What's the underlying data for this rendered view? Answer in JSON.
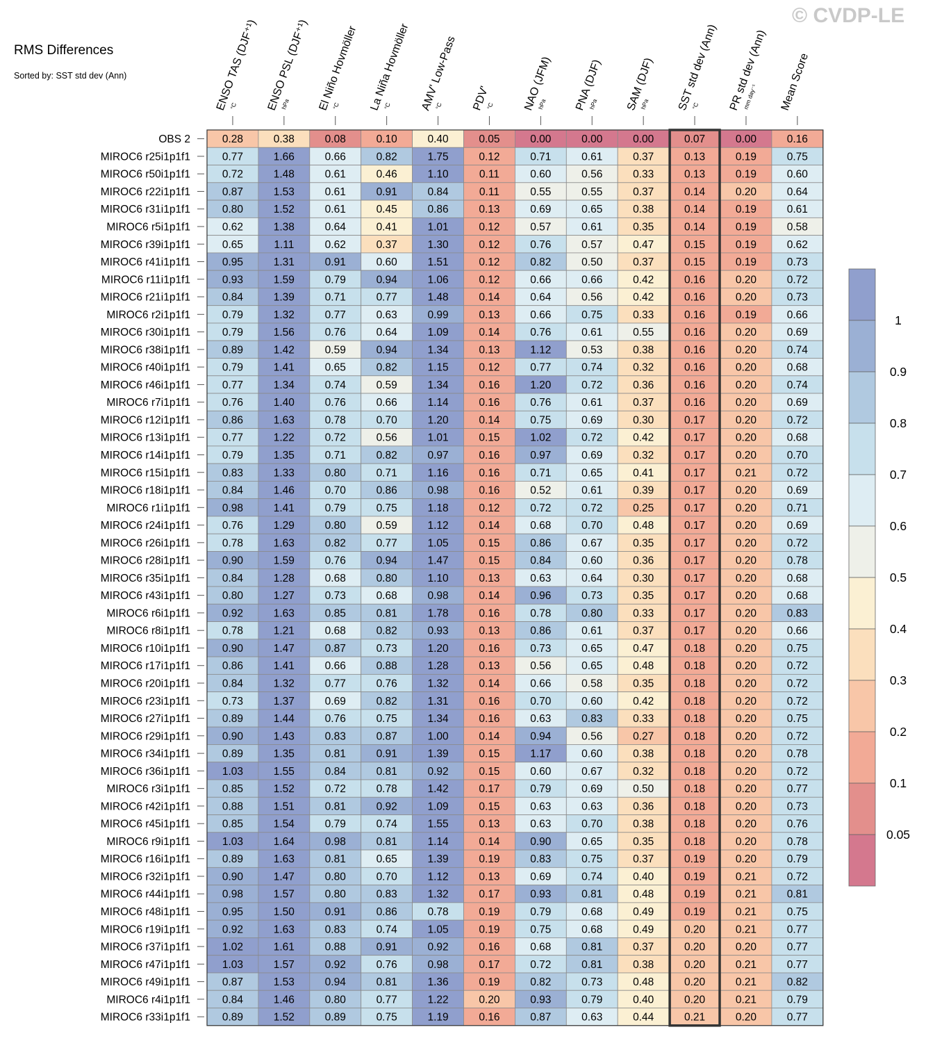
{
  "title": "RMS Differences",
  "subtitle": "Sorted by: SST std dev (Ann)",
  "watermark": "© CVDP-LE",
  "chart_data": {
    "type": "heatmap",
    "columns": [
      {
        "name": "ENSO TAS (DJF⁺¹)",
        "unit": "°C"
      },
      {
        "name": "ENSO PSL (DJF⁺¹)",
        "unit": "hPa"
      },
      {
        "name": "El Niño Hovmöller",
        "unit": "°C"
      },
      {
        "name": "La Niña Hovmöller",
        "unit": "°C"
      },
      {
        "name": "AMV' Low-Pass",
        "unit": "°C"
      },
      {
        "name": "PDV'",
        "unit": "°C"
      },
      {
        "name": "NAO (JFM)",
        "unit": "hPa"
      },
      {
        "name": "PNA (DJF)",
        "unit": "hPa"
      },
      {
        "name": "SAM (DJF)",
        "unit": "hPa"
      },
      {
        "name": "SST std dev (Ann)",
        "unit": "°C"
      },
      {
        "name": "PR std dev (Ann)",
        "unit": "mm day⁻¹"
      },
      {
        "name": "Mean Score",
        "unit": ""
      }
    ],
    "highlight_column": "SST std dev (Ann)",
    "rows": [
      {
        "label": "OBS 2",
        "values": [
          0.28,
          0.38,
          0.08,
          0.1,
          0.4,
          0.05,
          0.0,
          0.0,
          0.0,
          0.07,
          0.0,
          0.16
        ]
      },
      {
        "label": "MIROC6 r25i1p1f1",
        "values": [
          0.77,
          1.66,
          0.66,
          0.82,
          1.75,
          0.12,
          0.71,
          0.61,
          0.37,
          0.13,
          0.19,
          0.75
        ]
      },
      {
        "label": "MIROC6 r50i1p1f1",
        "values": [
          0.72,
          1.48,
          0.61,
          0.46,
          1.1,
          0.11,
          0.6,
          0.56,
          0.33,
          0.13,
          0.19,
          0.6
        ]
      },
      {
        "label": "MIROC6 r22i1p1f1",
        "values": [
          0.87,
          1.53,
          0.61,
          0.91,
          0.84,
          0.11,
          0.55,
          0.55,
          0.37,
          0.14,
          0.2,
          0.64
        ]
      },
      {
        "label": "MIROC6 r31i1p1f1",
        "values": [
          0.8,
          1.52,
          0.61,
          0.45,
          0.86,
          0.13,
          0.69,
          0.65,
          0.38,
          0.14,
          0.19,
          0.61
        ]
      },
      {
        "label": "MIROC6 r5i1p1f1",
        "values": [
          0.62,
          1.38,
          0.64,
          0.41,
          1.01,
          0.12,
          0.57,
          0.61,
          0.35,
          0.14,
          0.19,
          0.58
        ]
      },
      {
        "label": "MIROC6 r39i1p1f1",
        "values": [
          0.65,
          1.11,
          0.62,
          0.37,
          1.3,
          0.12,
          0.76,
          0.57,
          0.47,
          0.15,
          0.19,
          0.62
        ]
      },
      {
        "label": "MIROC6 r41i1p1f1",
        "values": [
          0.95,
          1.31,
          0.91,
          0.6,
          1.51,
          0.12,
          0.82,
          0.5,
          0.37,
          0.15,
          0.19,
          0.73
        ]
      },
      {
        "label": "MIROC6 r11i1p1f1",
        "values": [
          0.93,
          1.59,
          0.79,
          0.94,
          1.06,
          0.12,
          0.66,
          0.66,
          0.42,
          0.16,
          0.2,
          0.72
        ]
      },
      {
        "label": "MIROC6 r21i1p1f1",
        "values": [
          0.84,
          1.39,
          0.71,
          0.77,
          1.48,
          0.14,
          0.64,
          0.56,
          0.42,
          0.16,
          0.2,
          0.73
        ]
      },
      {
        "label": "MIROC6 r2i1p1f1",
        "values": [
          0.79,
          1.32,
          0.77,
          0.63,
          0.99,
          0.13,
          0.66,
          0.75,
          0.33,
          0.16,
          0.19,
          0.66
        ]
      },
      {
        "label": "MIROC6 r30i1p1f1",
        "values": [
          0.79,
          1.56,
          0.76,
          0.64,
          1.09,
          0.14,
          0.76,
          0.61,
          0.55,
          0.16,
          0.2,
          0.69
        ]
      },
      {
        "label": "MIROC6 r38i1p1f1",
        "values": [
          0.89,
          1.42,
          0.59,
          0.94,
          1.34,
          0.13,
          1.12,
          0.53,
          0.38,
          0.16,
          0.2,
          0.74
        ]
      },
      {
        "label": "MIROC6 r40i1p1f1",
        "values": [
          0.79,
          1.41,
          0.65,
          0.82,
          1.15,
          0.12,
          0.77,
          0.74,
          0.32,
          0.16,
          0.2,
          0.68
        ]
      },
      {
        "label": "MIROC6 r46i1p1f1",
        "values": [
          0.77,
          1.34,
          0.74,
          0.59,
          1.34,
          0.16,
          1.2,
          0.72,
          0.36,
          0.16,
          0.2,
          0.74
        ]
      },
      {
        "label": "MIROC6 r7i1p1f1",
        "values": [
          0.76,
          1.4,
          0.76,
          0.66,
          1.14,
          0.16,
          0.76,
          0.61,
          0.37,
          0.16,
          0.2,
          0.69
        ]
      },
      {
        "label": "MIROC6 r12i1p1f1",
        "values": [
          0.86,
          1.63,
          0.78,
          0.7,
          1.2,
          0.14,
          0.75,
          0.69,
          0.3,
          0.17,
          0.2,
          0.72
        ]
      },
      {
        "label": "MIROC6 r13i1p1f1",
        "values": [
          0.77,
          1.22,
          0.72,
          0.56,
          1.01,
          0.15,
          1.02,
          0.72,
          0.42,
          0.17,
          0.2,
          0.68
        ]
      },
      {
        "label": "MIROC6 r14i1p1f1",
        "values": [
          0.79,
          1.35,
          0.71,
          0.82,
          0.97,
          0.16,
          0.97,
          0.69,
          0.32,
          0.17,
          0.2,
          0.7
        ]
      },
      {
        "label": "MIROC6 r15i1p1f1",
        "values": [
          0.83,
          1.33,
          0.8,
          0.71,
          1.16,
          0.16,
          0.71,
          0.65,
          0.41,
          0.17,
          0.21,
          0.72
        ]
      },
      {
        "label": "MIROC6 r18i1p1f1",
        "values": [
          0.84,
          1.46,
          0.7,
          0.86,
          0.98,
          0.16,
          0.52,
          0.61,
          0.39,
          0.17,
          0.2,
          0.69
        ]
      },
      {
        "label": "MIROC6 r1i1p1f1",
        "values": [
          0.98,
          1.41,
          0.79,
          0.75,
          1.18,
          0.12,
          0.72,
          0.72,
          0.25,
          0.17,
          0.2,
          0.71
        ]
      },
      {
        "label": "MIROC6 r24i1p1f1",
        "values": [
          0.76,
          1.29,
          0.8,
          0.59,
          1.12,
          0.14,
          0.68,
          0.7,
          0.48,
          0.17,
          0.2,
          0.69
        ]
      },
      {
        "label": "MIROC6 r26i1p1f1",
        "values": [
          0.78,
          1.63,
          0.82,
          0.77,
          1.05,
          0.15,
          0.86,
          0.67,
          0.35,
          0.17,
          0.2,
          0.72
        ]
      },
      {
        "label": "MIROC6 r28i1p1f1",
        "values": [
          0.9,
          1.59,
          0.76,
          0.94,
          1.47,
          0.15,
          0.84,
          0.6,
          0.36,
          0.17,
          0.2,
          0.78
        ]
      },
      {
        "label": "MIROC6 r35i1p1f1",
        "values": [
          0.84,
          1.28,
          0.68,
          0.8,
          1.1,
          0.13,
          0.63,
          0.64,
          0.3,
          0.17,
          0.2,
          0.68
        ]
      },
      {
        "label": "MIROC6 r43i1p1f1",
        "values": [
          0.8,
          1.27,
          0.73,
          0.68,
          0.98,
          0.14,
          0.96,
          0.73,
          0.35,
          0.17,
          0.2,
          0.68
        ]
      },
      {
        "label": "MIROC6 r6i1p1f1",
        "values": [
          0.92,
          1.63,
          0.85,
          0.81,
          1.78,
          0.16,
          0.78,
          0.8,
          0.33,
          0.17,
          0.2,
          0.83
        ]
      },
      {
        "label": "MIROC6 r8i1p1f1",
        "values": [
          0.78,
          1.21,
          0.68,
          0.82,
          0.93,
          0.13,
          0.86,
          0.61,
          0.37,
          0.17,
          0.2,
          0.66
        ]
      },
      {
        "label": "MIROC6 r10i1p1f1",
        "values": [
          0.9,
          1.47,
          0.87,
          0.73,
          1.2,
          0.16,
          0.73,
          0.65,
          0.47,
          0.18,
          0.2,
          0.75
        ]
      },
      {
        "label": "MIROC6 r17i1p1f1",
        "values": [
          0.86,
          1.41,
          0.66,
          0.88,
          1.28,
          0.13,
          0.56,
          0.65,
          0.48,
          0.18,
          0.2,
          0.72
        ]
      },
      {
        "label": "MIROC6 r20i1p1f1",
        "values": [
          0.84,
          1.32,
          0.77,
          0.76,
          1.32,
          0.14,
          0.66,
          0.58,
          0.35,
          0.18,
          0.2,
          0.72
        ]
      },
      {
        "label": "MIROC6 r23i1p1f1",
        "values": [
          0.73,
          1.37,
          0.69,
          0.82,
          1.31,
          0.16,
          0.7,
          0.6,
          0.42,
          0.18,
          0.2,
          0.72
        ]
      },
      {
        "label": "MIROC6 r27i1p1f1",
        "values": [
          0.89,
          1.44,
          0.76,
          0.75,
          1.34,
          0.16,
          0.63,
          0.83,
          0.33,
          0.18,
          0.2,
          0.75
        ]
      },
      {
        "label": "MIROC6 r29i1p1f1",
        "values": [
          0.9,
          1.43,
          0.83,
          0.87,
          1.0,
          0.14,
          0.94,
          0.56,
          0.27,
          0.18,
          0.2,
          0.72
        ]
      },
      {
        "label": "MIROC6 r34i1p1f1",
        "values": [
          0.89,
          1.35,
          0.81,
          0.91,
          1.39,
          0.15,
          1.17,
          0.6,
          0.38,
          0.18,
          0.2,
          0.78
        ]
      },
      {
        "label": "MIROC6 r36i1p1f1",
        "values": [
          1.03,
          1.55,
          0.84,
          0.81,
          0.92,
          0.15,
          0.6,
          0.67,
          0.32,
          0.18,
          0.2,
          0.72
        ]
      },
      {
        "label": "MIROC6 r3i1p1f1",
        "values": [
          0.85,
          1.52,
          0.72,
          0.78,
          1.42,
          0.17,
          0.79,
          0.69,
          0.5,
          0.18,
          0.2,
          0.77
        ]
      },
      {
        "label": "MIROC6 r42i1p1f1",
        "values": [
          0.88,
          1.51,
          0.81,
          0.92,
          1.09,
          0.15,
          0.63,
          0.63,
          0.36,
          0.18,
          0.2,
          0.73
        ]
      },
      {
        "label": "MIROC6 r45i1p1f1",
        "values": [
          0.85,
          1.54,
          0.79,
          0.74,
          1.55,
          0.13,
          0.63,
          0.7,
          0.38,
          0.18,
          0.2,
          0.76
        ]
      },
      {
        "label": "MIROC6 r9i1p1f1",
        "values": [
          1.03,
          1.64,
          0.98,
          0.81,
          1.14,
          0.14,
          0.9,
          0.65,
          0.35,
          0.18,
          0.2,
          0.78
        ]
      },
      {
        "label": "MIROC6 r16i1p1f1",
        "values": [
          0.89,
          1.63,
          0.81,
          0.65,
          1.39,
          0.19,
          0.83,
          0.75,
          0.37,
          0.19,
          0.2,
          0.79
        ]
      },
      {
        "label": "MIROC6 r32i1p1f1",
        "values": [
          0.9,
          1.47,
          0.8,
          0.7,
          1.12,
          0.13,
          0.69,
          0.74,
          0.4,
          0.19,
          0.21,
          0.72
        ]
      },
      {
        "label": "MIROC6 r44i1p1f1",
        "values": [
          0.98,
          1.57,
          0.8,
          0.83,
          1.32,
          0.17,
          0.93,
          0.81,
          0.48,
          0.19,
          0.21,
          0.81
        ]
      },
      {
        "label": "MIROC6 r48i1p1f1",
        "values": [
          0.95,
          1.5,
          0.91,
          0.86,
          0.78,
          0.19,
          0.79,
          0.68,
          0.49,
          0.19,
          0.21,
          0.75
        ]
      },
      {
        "label": "MIROC6 r19i1p1f1",
        "values": [
          0.92,
          1.63,
          0.83,
          0.74,
          1.05,
          0.19,
          0.75,
          0.68,
          0.49,
          0.2,
          0.21,
          0.77
        ]
      },
      {
        "label": "MIROC6 r37i1p1f1",
        "values": [
          1.02,
          1.61,
          0.88,
          0.91,
          0.92,
          0.16,
          0.68,
          0.81,
          0.37,
          0.2,
          0.2,
          0.77
        ]
      },
      {
        "label": "MIROC6 r47i1p1f1",
        "values": [
          1.03,
          1.57,
          0.92,
          0.76,
          0.98,
          0.17,
          0.72,
          0.81,
          0.38,
          0.2,
          0.21,
          0.77
        ]
      },
      {
        "label": "MIROC6 r49i1p1f1",
        "values": [
          0.87,
          1.53,
          0.94,
          0.81,
          1.36,
          0.19,
          0.82,
          0.73,
          0.48,
          0.2,
          0.21,
          0.82
        ]
      },
      {
        "label": "MIROC6 r4i1p1f1",
        "values": [
          0.84,
          1.46,
          0.8,
          0.77,
          1.22,
          0.2,
          0.93,
          0.79,
          0.4,
          0.2,
          0.21,
          0.79
        ]
      },
      {
        "label": "MIROC6 r33i1p1f1",
        "values": [
          0.89,
          1.52,
          0.89,
          0.75,
          1.19,
          0.16,
          0.87,
          0.63,
          0.44,
          0.21,
          0.2,
          0.77
        ]
      }
    ],
    "colorbar": {
      "labels": [
        "1",
        "0.9",
        "0.8",
        "0.7",
        "0.6",
        "0.5",
        "0.4",
        "0.3",
        "0.2",
        "0.1",
        "0.05"
      ],
      "thresholds": [
        0.05,
        0.1,
        0.2,
        0.3,
        0.4,
        0.5,
        0.6,
        0.7,
        0.8,
        0.9,
        1.0
      ],
      "colors": [
        "#d4788e",
        "#e38f8c",
        "#f2aa96",
        "#f8c6a8",
        "#fbdfbd",
        "#fbf0d3",
        "#eef0e9",
        "#deedf3",
        "#c7e0ec",
        "#b0c9e0",
        "#9bb0d4",
        "#909fcd"
      ]
    }
  }
}
